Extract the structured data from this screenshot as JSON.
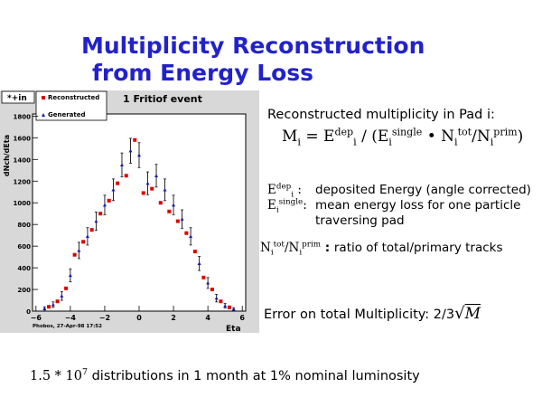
{
  "title": {
    "line1": "Multiplicity Reconstruction",
    "line2": "from Energy Loss"
  },
  "formula": {
    "heading": "Reconstructed multiplicity in Pad i:",
    "M": "M",
    "i": "i",
    "eq": " = ",
    "E": "E",
    "dep": "dep",
    "slash": " / ",
    "open": " (",
    "single": "single",
    "bullet": " • ",
    "N": "N",
    "tot": "tot",
    "prim": "prim",
    "close": ")",
    "frac": "/"
  },
  "definitions": {
    "edep_sym": "E",
    "edep_sup": "dep",
    "edep_sub": "i",
    "edep_colon": " :",
    "edep_text": "deposited Energy (angle corrected)",
    "esingle_sym": "E",
    "esingle_sup": "single",
    "esingle_sub": "i",
    "esingle_colon": ":",
    "esingle_text1": "mean energy loss for one particle",
    "esingle_text2": "traversing pad",
    "ratio_N1": "N",
    "ratio_sub": "i",
    "ratio_tot": "tot",
    "ratio_slash": "/",
    "ratio_prim": "prim",
    "ratio_colon": " : ",
    "ratio_text": "ratio of total/primary tracks"
  },
  "error": {
    "label": "Error on total Multiplicity: 2/3",
    "sqrt_symbol": "√",
    "sqrt_var": "M"
  },
  "footer": {
    "base": "1.5 * 10",
    "exp": "7",
    "text": " distributions in 1 month at 1% nominal luminosity"
  },
  "colors": {
    "title": "#2222cc",
    "reconstructed": "#dd0000",
    "generated": "#1a1aa8",
    "frame_bg": "#ffffff",
    "canvas_bg": "#d8d8d8"
  },
  "chart_data": {
    "type": "scatter",
    "title": "1 Fritiof event",
    "xlabel": "Eta",
    "ylabel": "dNch/dEta",
    "stats_label": "*+in",
    "footer_note": "Phobos, 27-Apr-98 17:52",
    "xlim": [
      -6.2,
      6.2
    ],
    "ylim": [
      0,
      1820
    ],
    "xticks": [
      -6,
      -4,
      -2,
      0,
      2,
      4,
      6
    ],
    "yticks": [
      0,
      200,
      400,
      600,
      800,
      1000,
      1200,
      1400,
      1600,
      1800
    ],
    "xtick_labels": [
      "−6",
      "−4",
      "−2",
      "0",
      "2",
      "4",
      "6"
    ],
    "ytick_labels": [
      "0",
      "200",
      "400",
      "600",
      "800",
      "1000",
      "1200",
      "1400",
      "1600",
      "1800"
    ],
    "legend_position": "top-left",
    "series": [
      {
        "name": "Reconstructed",
        "color": "#dd0000",
        "marker": "square",
        "x": [
          -5.25,
          -4.75,
          -4.25,
          -3.75,
          -3.25,
          -2.75,
          -2.25,
          -1.75,
          -1.25,
          -0.75,
          -0.25,
          0.25,
          0.75,
          1.25,
          1.75,
          2.25,
          2.75,
          3.25,
          3.75,
          4.25,
          4.75,
          5.25
        ],
        "y": [
          40,
          90,
          210,
          520,
          640,
          750,
          900,
          1020,
          1180,
          1250,
          1580,
          1090,
          1130,
          1000,
          920,
          830,
          720,
          550,
          310,
          200,
          90,
          35
        ]
      },
      {
        "name": "Generated",
        "color": "#1a1aa8",
        "marker": "triangle",
        "x": [
          -5.5,
          -5.0,
          -4.5,
          -4.0,
          -3.5,
          -3.0,
          -2.5,
          -2.0,
          -1.5,
          -1.0,
          -0.5,
          0.0,
          0.5,
          1.0,
          1.5,
          2.0,
          2.5,
          3.0,
          3.5,
          4.0,
          4.5,
          5.0,
          5.5
        ],
        "y": [
          25,
          60,
          140,
          330,
          560,
          690,
          830,
          980,
          1120,
          1350,
          1480,
          1440,
          1180,
          1250,
          1120,
          980,
          850,
          690,
          440,
          260,
          120,
          50,
          20
        ],
        "err": [
          15,
          25,
          40,
          60,
          75,
          80,
          85,
          90,
          100,
          110,
          115,
          115,
          105,
          105,
          100,
          90,
          85,
          80,
          65,
          50,
          35,
          20,
          12
        ]
      }
    ]
  }
}
